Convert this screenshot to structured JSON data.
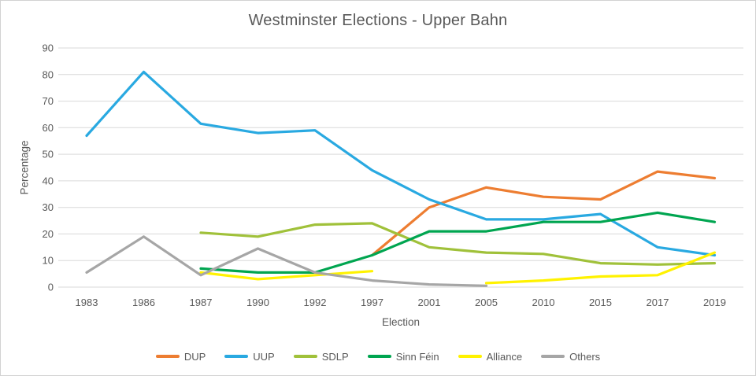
{
  "chart_data": {
    "type": "line",
    "title": "Westminster Elections - Upper Bahn",
    "xlabel": "Election",
    "ylabel": "Percentage",
    "ylim": [
      0,
      90
    ],
    "ytick_step": 10,
    "grid": "horizontal-only",
    "legend_position": "bottom",
    "categories": [
      "1983",
      "1986",
      "1987",
      "1990",
      "1992",
      "1997",
      "2001",
      "2005",
      "2010",
      "2015",
      "2017",
      "2019"
    ],
    "series": [
      {
        "name": "DUP",
        "color": "#ED7D31",
        "values": [
          null,
          null,
          null,
          null,
          null,
          12,
          30,
          37.5,
          34,
          33,
          43.5,
          41
        ]
      },
      {
        "name": "UUP",
        "color": "#29A9E1",
        "values": [
          57,
          81,
          61.5,
          58,
          59,
          44,
          33,
          25.5,
          25.5,
          27.5,
          15,
          12
        ]
      },
      {
        "name": "SDLP",
        "color": "#A0C13A",
        "values": [
          null,
          null,
          20.5,
          19,
          23.5,
          24,
          15,
          13,
          12.5,
          9,
          8.5,
          9
        ]
      },
      {
        "name": "Sinn Féin",
        "color": "#00A550",
        "values": [
          null,
          null,
          7,
          5.5,
          5.5,
          12,
          21,
          21,
          24.5,
          24.5,
          28,
          24.5
        ]
      },
      {
        "name": "Alliance",
        "color": "#FFF200",
        "values": [
          null,
          null,
          5.5,
          3,
          4.5,
          6,
          null,
          1.5,
          2.5,
          4,
          4.5,
          13
        ]
      },
      {
        "name": "Others",
        "color": "#A6A6A6",
        "values": [
          5.5,
          19,
          4.5,
          14.5,
          5.5,
          2.5,
          1,
          0.5,
          null,
          null,
          null,
          null
        ]
      }
    ]
  },
  "style_colors": {
    "text": "#595959",
    "gridline": "#D9D9D9",
    "frame_border": "#D2D2D2"
  }
}
